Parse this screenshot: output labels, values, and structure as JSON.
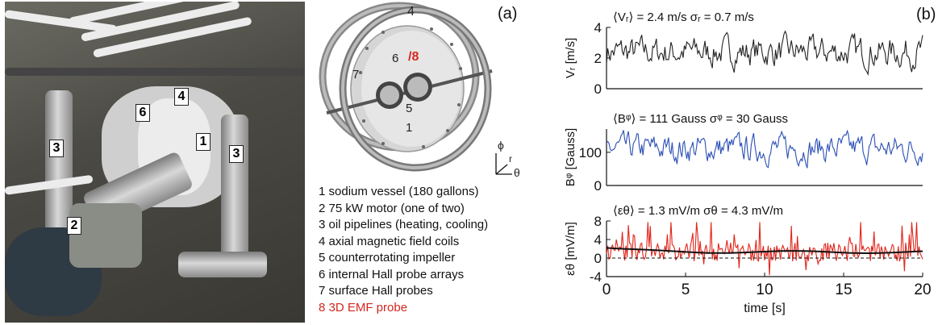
{
  "photo": {
    "labels": [
      "1",
      "2",
      "3",
      "3",
      "4",
      "6"
    ]
  },
  "diagram": {
    "panel_label": "(a)",
    "part_labels": [
      "4",
      "7",
      "6",
      "/8",
      "5",
      "1"
    ],
    "axis_labels": {
      "phi": "ϕ",
      "r": "r",
      "theta": "θ"
    },
    "legend": [
      {
        "text": "1 sodium vessel (180 gallons)"
      },
      {
        "text": "2 75 kW motor (one of two)"
      },
      {
        "text": "3 oil pipelines (heating, cooling)"
      },
      {
        "text": "4 axial magnetic field coils"
      },
      {
        "text": "5 counterrotating impeller"
      },
      {
        "text": "6 internal Hall probe arrays"
      },
      {
        "text": "7 surface Hall probes"
      },
      {
        "text": "8 3D EMF probe"
      }
    ],
    "colors": {
      "highlight": "#d4281e"
    }
  },
  "chart_panel": {
    "panel_label": "(b)"
  },
  "chart_data": [
    {
      "type": "line",
      "annotation": "⟨Vᵣ⟩ = 2.4 m/s    σᵣ = 0.7 m/s",
      "ylabel": "Vᵣ [m/s]",
      "ylim": [
        0,
        4
      ],
      "yticks": [
        "0",
        "2",
        "4"
      ],
      "xlim": [
        0,
        20
      ],
      "mean": 2.4,
      "sigma": 0.7,
      "color": "#222222"
    },
    {
      "type": "line",
      "annotation": "⟨Bᵠ⟩ = 111 Gauss    σᵠ = 30 Gauss",
      "ylabel": "Bᵠ [Gauss]",
      "ylim": [
        0,
        170
      ],
      "yticks": [
        "0",
        "100"
      ],
      "xlim": [
        0,
        20
      ],
      "mean": 111,
      "sigma": 30,
      "color": "#2b4fb5"
    },
    {
      "type": "line",
      "annotation": "⟨εθ⟩ = 1.3 mV/m    σθ = 4.3 mV/m",
      "ylabel": "εθ [mV/m]",
      "ylim": [
        -4,
        8
      ],
      "yticks": [
        "-4",
        "0",
        "4",
        "8"
      ],
      "xlim": [
        0,
        20
      ],
      "xticks": [
        "0",
        "5",
        "10",
        "15",
        "20"
      ],
      "xlabel": "time [s]",
      "mean": 1.3,
      "sigma": 4.3,
      "color": "#e0251b",
      "overlay_color": "#111111"
    }
  ]
}
